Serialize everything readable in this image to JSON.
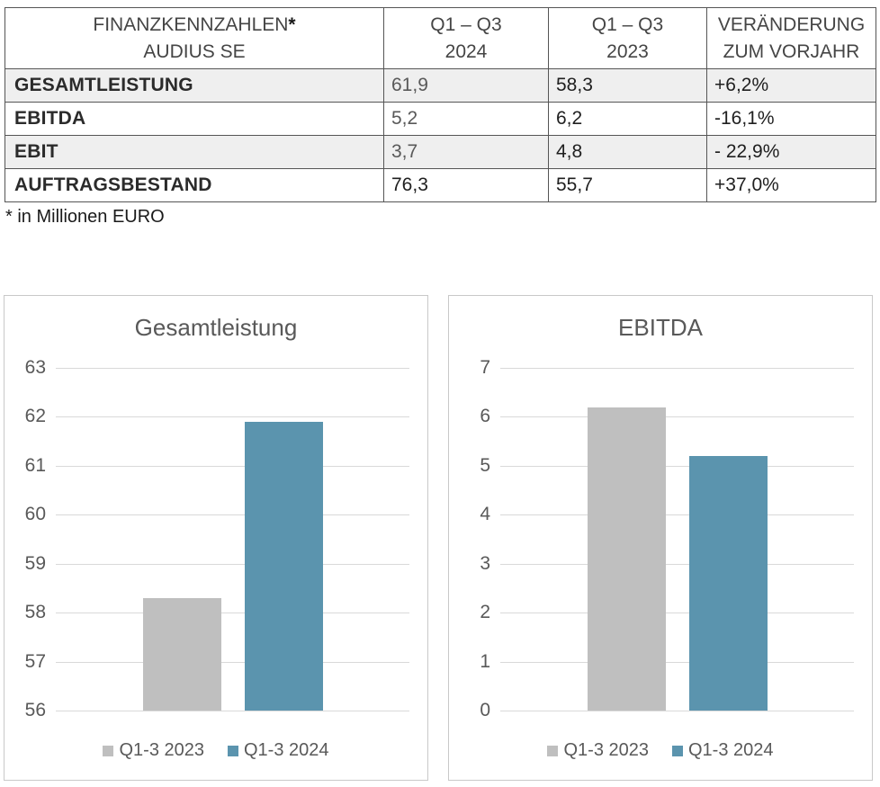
{
  "table": {
    "header": {
      "col1_line1": "FINANZKENNZAHLEN",
      "col1_star": "*",
      "col1_line2": "AUDIUS SE",
      "col2_line1": "Q1 – Q3",
      "col2_line2": "2024",
      "col3_line1": "Q1 – Q3",
      "col3_line2": "2023",
      "col4_line1": "VERÄNDERUNG",
      "col4_line2": "ZUM VORJAHR"
    },
    "rows": [
      {
        "label": "GESAMTLEISTUNG",
        "v2024": "61,9",
        "v2023": "58,3",
        "change": "+6,2%",
        "shaded": true,
        "muted_2024": true
      },
      {
        "label": "EBITDA",
        "v2024": "5,2",
        "v2023": "6,2",
        "change": "-16,1%",
        "shaded": false,
        "muted_2024": true
      },
      {
        "label": "EBIT",
        "v2024": "3,7",
        "v2023": "4,8",
        "change": "- 22,9%",
        "shaded": true,
        "muted_2024": true
      },
      {
        "label": "AUFTRAGSBESTAND",
        "v2024": "76,3",
        "v2023": "55,7",
        "change": "+37,0%",
        "shaded": false,
        "muted_2024": false
      }
    ],
    "footnote": "* in Millionen EURO"
  },
  "colors": {
    "bar_2023": "#bfbfbf",
    "bar_2024": "#5b94ae",
    "gridline": "#d9d9d9",
    "axis_text": "#595959",
    "row_shade": "#efefef",
    "table_border": "#555555"
  },
  "chart_data": [
    {
      "type": "bar",
      "title": "Gesamtleistung",
      "ylim": [
        56,
        63
      ],
      "ytick_step": 1,
      "grid": true,
      "legend_position": "bottom",
      "series": [
        {
          "name": "Q1-3 2023",
          "value": 58.3,
          "color": "#bfbfbf"
        },
        {
          "name": "Q1-3 2024",
          "value": 61.9,
          "color": "#5b94ae"
        }
      ]
    },
    {
      "type": "bar",
      "title": "EBITDA",
      "ylim": [
        0,
        7
      ],
      "ytick_step": 1,
      "grid": true,
      "legend_position": "bottom",
      "series": [
        {
          "name": "Q1-3 2023",
          "value": 6.2,
          "color": "#bfbfbf"
        },
        {
          "name": "Q1-3 2024",
          "value": 5.2,
          "color": "#5b94ae"
        }
      ]
    }
  ]
}
